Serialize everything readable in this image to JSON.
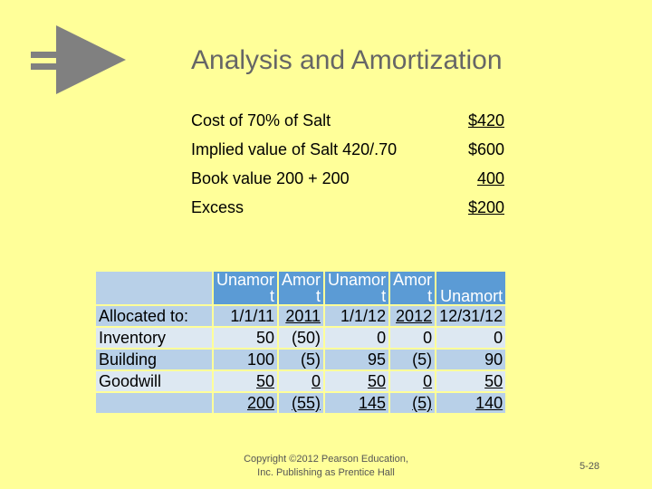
{
  "slide": {
    "title": "Analysis and Amortization",
    "page_number": "5-28",
    "copyright_line1": "Copyright ©2012 Pearson Education,",
    "copyright_line2": "Inc. Publishing as Prentice Hall"
  },
  "calc": [
    {
      "label": "Cost of 70% of Salt",
      "value": "$420"
    },
    {
      "label": "Implied value of Salt 420/.70",
      "value": "$600"
    },
    {
      "label": "Book value 200 + 200",
      "value": "400"
    },
    {
      "label": "Excess",
      "value": "$200"
    }
  ],
  "table": {
    "headers": [
      {
        "line1": "Unamor",
        "line2": "t"
      },
      {
        "line1": "Amor",
        "line2": "t"
      },
      {
        "line1": "Unamor",
        "line2": "t"
      },
      {
        "line1": "Amor",
        "line2": "t"
      },
      {
        "line1": "",
        "line2": "Unamort"
      }
    ],
    "date_row": {
      "label": "Allocated to:",
      "values": [
        "1/1/11",
        "2011",
        "1/1/12",
        "2012",
        "12/31/12"
      ]
    },
    "rows": [
      {
        "label": "Inventory",
        "values": [
          "50",
          "(50)",
          "0",
          "0",
          "0"
        ]
      },
      {
        "label": "Building",
        "values": [
          "100",
          "(5)",
          "95",
          "(5)",
          "90"
        ]
      },
      {
        "label": "Goodwill",
        "values": [
          "50",
          "0",
          "50",
          "0",
          "50"
        ]
      }
    ],
    "total_row": {
      "label": "",
      "values": [
        "200",
        "(55)",
        "145",
        "(5)",
        "140"
      ]
    }
  }
}
